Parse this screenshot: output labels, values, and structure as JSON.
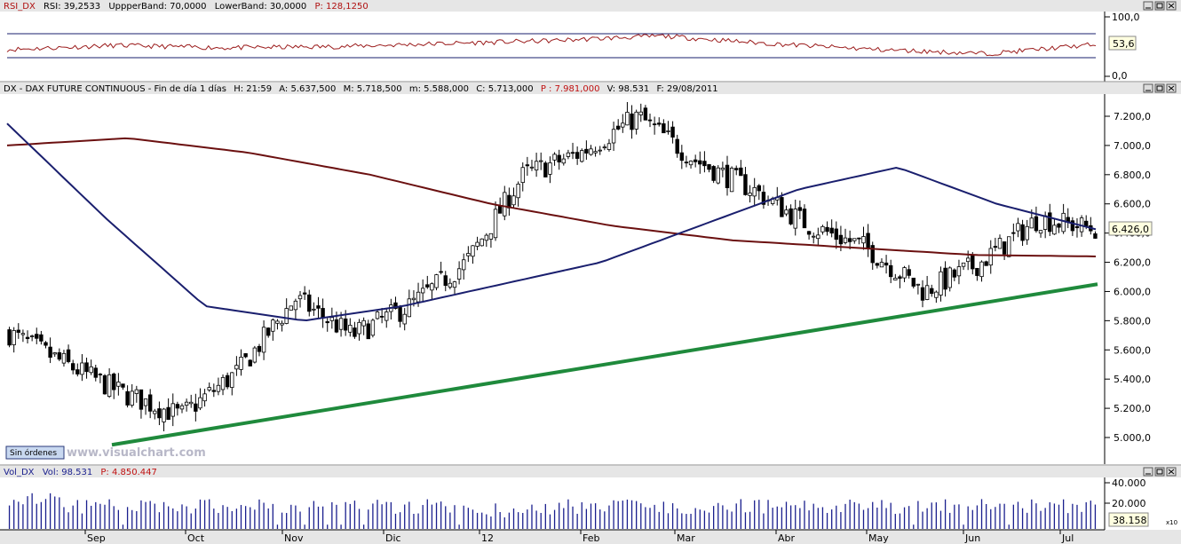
{
  "rsi_panel": {
    "header": {
      "name": "RSI_DX",
      "rsi": "RSI: 39,2533",
      "upper": "UppperBand: 70,0000",
      "lower": "LowerBand: 30,0000",
      "p": "P: 128,1250"
    },
    "ticks": [
      "100,0",
      "0,0"
    ],
    "current_label": "53,6"
  },
  "price_panel": {
    "header": {
      "name": "DX - DAX FUTURE CONTINUOUS - Fin de día 1 días",
      "h": "H: 21:59",
      "a": "A: 5.637,500",
      "m": "M: 5.718,500",
      "mlow": "m: 5.588,000",
      "c": "C: 5.713,000",
      "p": "P : 7.981,000",
      "v": "V: 98.531",
      "f": "F: 29/08/2011"
    },
    "current_label": "6.426,0",
    "watermark": "www.visualchart.com",
    "button_label": "Sin órdenes"
  },
  "volume_panel": {
    "header": {
      "name": "Vol_DX",
      "vol": "Vol: 98.531",
      "p": "P: 4.850.447"
    },
    "ticks": [
      "40.000",
      "20.000"
    ],
    "current_label": "38.158",
    "multiplier": "x10"
  },
  "x_labels": [
    "Sep",
    "Oct",
    "Nov",
    "Dic",
    "12",
    "Feb",
    "Mar",
    "Abr",
    "May",
    "Jun",
    "Jul"
  ],
  "colors": {
    "up": "#ffffff",
    "down": "#000000",
    "ma_short": "#1a1f6e",
    "ma_long": "#6b1010",
    "trendline": "#1f8a3c",
    "rsi_line": "#9b1b1b",
    "rsi_bands": "#1a1f6e",
    "volume": "#1a1f8e"
  },
  "chart_data": [
    {
      "type": "line",
      "name": "RSI",
      "ylim": [
        0,
        100
      ],
      "bands": [
        70,
        30
      ],
      "x": [
        "Sep",
        "Oct",
        "Nov",
        "Dic",
        "12",
        "Feb",
        "Mar",
        "Abr",
        "May",
        "Jun",
        "Jul"
      ],
      "values": [
        45,
        52,
        48,
        50,
        55,
        60,
        68,
        55,
        45,
        38,
        53.6
      ]
    },
    {
      "type": "candlestick",
      "name": "DX - DAX FUTURE CONTINUOUS",
      "ylim": [
        4850,
        7300
      ],
      "yticks": [
        5000,
        5200,
        5400,
        5600,
        5800,
        6000,
        6200,
        6400,
        6600,
        6800,
        7000,
        7200
      ],
      "ytick_labels": [
        "5.000,0",
        "5.200,0",
        "5.400,0",
        "5.600,0",
        "5.800,0",
        "6.000,0",
        "6.200,0",
        "6.400,0",
        "6.600,0",
        "6.800,0",
        "7.000,0",
        "7.200,0"
      ],
      "x": [
        "Sep",
        "Oct",
        "Nov",
        "Dic",
        "12",
        "Feb",
        "Mar",
        "Abr",
        "May",
        "Jun",
        "Jul"
      ],
      "close_path": [
        5713,
        5500,
        5300,
        5150,
        5450,
        5950,
        5700,
        5900,
        6200,
        6800,
        6950,
        7200,
        6900,
        6700,
        6450,
        6300,
        6000,
        6200,
        6500,
        6426
      ],
      "ma_short_path": [
        7150,
        6500,
        5900,
        5800,
        5900,
        6050,
        6200,
        6450,
        6700,
        6850,
        6600,
        6426
      ],
      "ma_long_path": [
        7000,
        7050,
        6950,
        6800,
        6600,
        6450,
        6350,
        6300,
        6250,
        6240
      ],
      "trendline": [
        4950,
        6050
      ],
      "current": 6426
    },
    {
      "type": "bar",
      "name": "Vol_DX",
      "ylim": [
        0,
        45000
      ],
      "current": 38158
    }
  ]
}
